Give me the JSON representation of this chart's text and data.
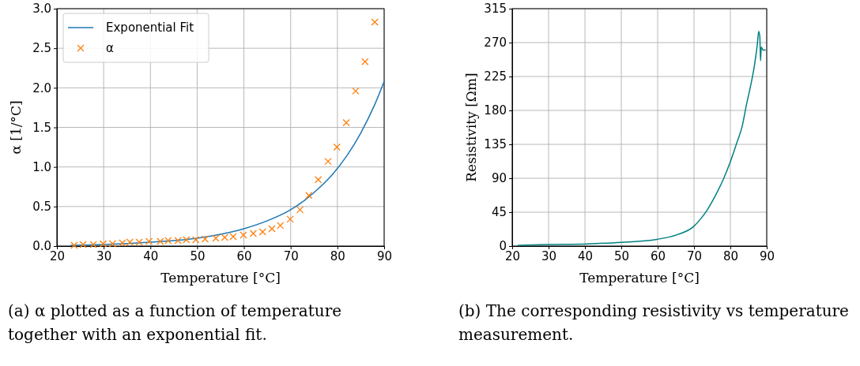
{
  "chart_data": [
    {
      "type": "line",
      "xlabel": "Temperature [°C]",
      "ylabel": "α [1/°C]",
      "xlim": [
        20,
        90
      ],
      "ylim": [
        0,
        3.0
      ],
      "xticks": [
        20,
        30,
        40,
        50,
        60,
        70,
        80,
        90
      ],
      "yticks": [
        {
          "value": 0,
          "label": "0.0"
        },
        {
          "value": 0.5,
          "label": "0.5"
        },
        {
          "value": 1,
          "label": "1.0"
        },
        {
          "value": 1.5,
          "label": "1.5"
        },
        {
          "value": 2,
          "label": "2.0"
        },
        {
          "value": 2.5,
          "label": "2.5"
        },
        {
          "value": 3,
          "label": "3.0"
        }
      ],
      "grid": true,
      "legend": "top left",
      "annotations": [
        "(a) α plotted as a function of temperature together with an exponential fit."
      ],
      "series": [
        {
          "name": "Exponential Fit",
          "color": "#1f77b4",
          "x": [
            23,
            30,
            40,
            50,
            55,
            60,
            65,
            70,
            73,
            76,
            79,
            82,
            85,
            88,
            90
          ],
          "values": [
            0.01,
            0.02,
            0.05,
            0.1,
            0.15,
            0.22,
            0.32,
            0.46,
            0.58,
            0.73,
            0.91,
            1.14,
            1.43,
            1.79,
            2.08
          ]
        },
        {
          "name": "α",
          "type": "scatter",
          "marker": "cross",
          "color": "#ff7f0e",
          "x": [
            23.7,
            25.6,
            27.8,
            29.9,
            31.9,
            34.0,
            35.6,
            37.6,
            39.7,
            42.1,
            43.8,
            45.9,
            47.7,
            49.7,
            51.7,
            54.0,
            55.9,
            57.7,
            59.9,
            62.0,
            64.0,
            66.0,
            67.8,
            69.9,
            72.0,
            73.9,
            75.9,
            78.0,
            79.9,
            81.9,
            83.9,
            85.9,
            88.0
          ],
          "values": [
            0.01,
            0.02,
            0.02,
            0.03,
            0.03,
            0.04,
            0.05,
            0.05,
            0.06,
            0.06,
            0.07,
            0.07,
            0.08,
            0.08,
            0.09,
            0.1,
            0.11,
            0.12,
            0.14,
            0.16,
            0.18,
            0.22,
            0.26,
            0.34,
            0.46,
            0.64,
            0.84,
            1.07,
            1.25,
            1.56,
            1.96,
            2.33,
            2.83
          ]
        }
      ]
    },
    {
      "type": "line",
      "xlabel": "Temperature [°C]",
      "ylabel": "Resistivity [Ωm]",
      "xlim": [
        20,
        90
      ],
      "ylim": [
        0,
        315
      ],
      "xticks": [
        20,
        30,
        40,
        50,
        60,
        70,
        80,
        90
      ],
      "yticks": [
        0,
        45,
        90,
        135,
        180,
        225,
        270,
        315
      ],
      "grid": true,
      "annotations": [
        "(b) The corresponding resistivity vs temperature measurement."
      ],
      "series": [
        {
          "color": "#008080",
          "x": [
            21.6,
            29.7,
            40.7,
            50,
            59.8,
            65.3,
            69.9,
            71.8,
            73.5,
            76.2,
            78.1,
            80,
            81.7,
            83.3,
            84.4,
            85.5,
            86.6,
            87.4,
            87.8,
            88.1,
            88.3,
            88.5,
            89.0,
            89.6
          ],
          "values": [
            1,
            2,
            3,
            5,
            9,
            15,
            26,
            36,
            47,
            70,
            89,
            112,
            136,
            160,
            187,
            211,
            239,
            267,
            285,
            278,
            246,
            264,
            260,
            260
          ]
        }
      ]
    }
  ]
}
